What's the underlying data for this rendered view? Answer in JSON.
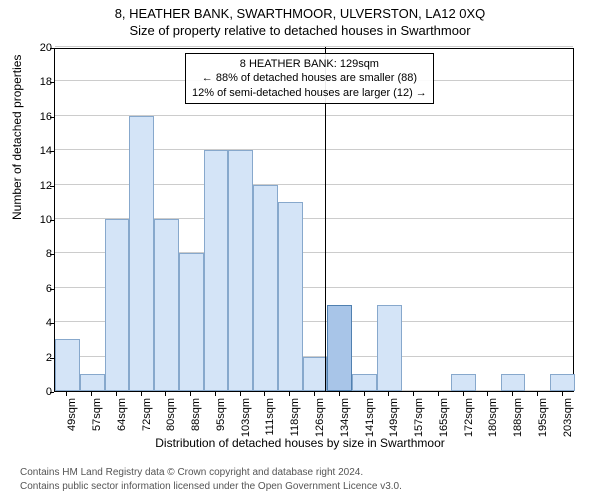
{
  "title": "8, HEATHER BANK, SWARTHMOOR, ULVERSTON, LA12 0XQ",
  "subtitle": "Size of property relative to detached houses in Swarthmoor",
  "chart": {
    "type": "histogram",
    "ylabel": "Number of detached properties",
    "xlabel": "Distribution of detached houses by size in Swarthmoor",
    "ylim": [
      0,
      20
    ],
    "ytick_step": 2,
    "yticks": [
      0,
      2,
      4,
      6,
      8,
      10,
      12,
      14,
      16,
      18,
      20
    ],
    "xticks": [
      "49sqm",
      "57sqm",
      "64sqm",
      "72sqm",
      "80sqm",
      "88sqm",
      "95sqm",
      "103sqm",
      "111sqm",
      "118sqm",
      "126sqm",
      "134sqm",
      "141sqm",
      "149sqm",
      "157sqm",
      "165sqm",
      "172sqm",
      "180sqm",
      "188sqm",
      "195sqm",
      "203sqm"
    ],
    "values": [
      3,
      1,
      10,
      16,
      10,
      8,
      14,
      14,
      12,
      11,
      2,
      5,
      1,
      5,
      0,
      0,
      1,
      0,
      1,
      0,
      1
    ],
    "bar_color": "#d4e4f7",
    "bar_border": "#87a8cc",
    "highlight_bar_color": "#a8c5e8",
    "highlight_bar_border": "#5080b0",
    "grid_color": "#cccccc",
    "background_color": "#ffffff",
    "highlight_index": 11,
    "marker_position": 0.52,
    "label_fontsize": 12,
    "tick_fontsize": 11
  },
  "annotation": {
    "line1": "8 HEATHER BANK: 129sqm",
    "line2": "← 88% of detached houses are smaller (88)",
    "line3": "12% of semi-detached houses are larger (12) →"
  },
  "footer": {
    "line1": "Contains HM Land Registry data © Crown copyright and database right 2024.",
    "line2": "Contains public sector information licensed under the Open Government Licence v3.0."
  }
}
